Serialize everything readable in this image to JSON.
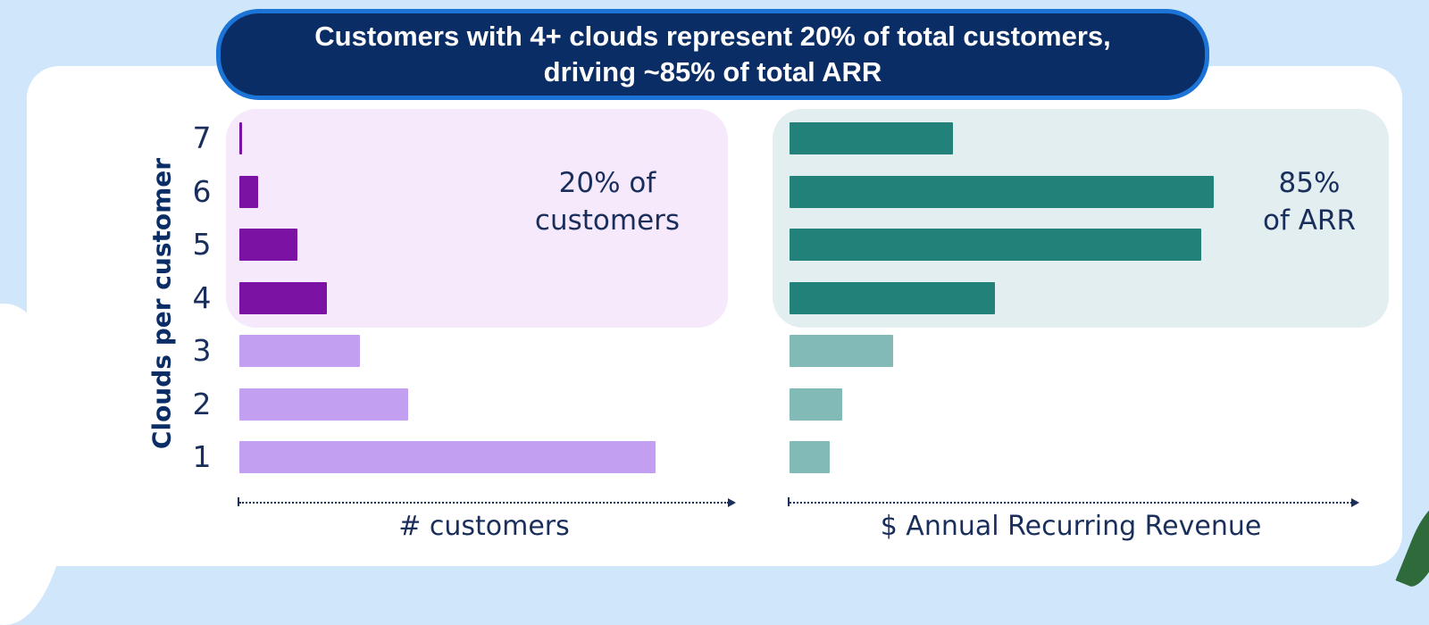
{
  "chart_data": [
    {
      "type": "bar",
      "orientation": "horizontal",
      "title": "Customers with 4+ clouds represent 20% of total customers,\ndriving ~85% of total ARR",
      "ylabel": "Clouds per customer",
      "xlabel": "# customers",
      "categories": [
        "7",
        "6",
        "5",
        "4",
        "3",
        "2",
        "1"
      ],
      "values": [
        0.6,
        4.5,
        14,
        21,
        29,
        40.5,
        100
      ],
      "xlim": [
        0,
        100
      ],
      "highlight_text": "20% of\ncustomers",
      "highlight_categories": [
        "7",
        "6",
        "5",
        "4"
      ],
      "colors": {
        "highlight": "#7b12a4",
        "normal": "#c29ff0",
        "panel": "#f6e9fc"
      }
    },
    {
      "type": "bar",
      "orientation": "horizontal",
      "xlabel": "$ Annual Recurring Revenue",
      "categories": [
        "7",
        "6",
        "5",
        "4",
        "3",
        "2",
        "1"
      ],
      "values": [
        38.5,
        100,
        97,
        48.5,
        24.5,
        12.5,
        9.5
      ],
      "xlim": [
        0,
        100
      ],
      "highlight_text": "85%\nof ARR",
      "highlight_categories": [
        "7",
        "6",
        "5",
        "4"
      ],
      "colors": {
        "highlight": "#22827a",
        "normal": "#82bab8",
        "panel": "#e2eef0"
      }
    }
  ]
}
